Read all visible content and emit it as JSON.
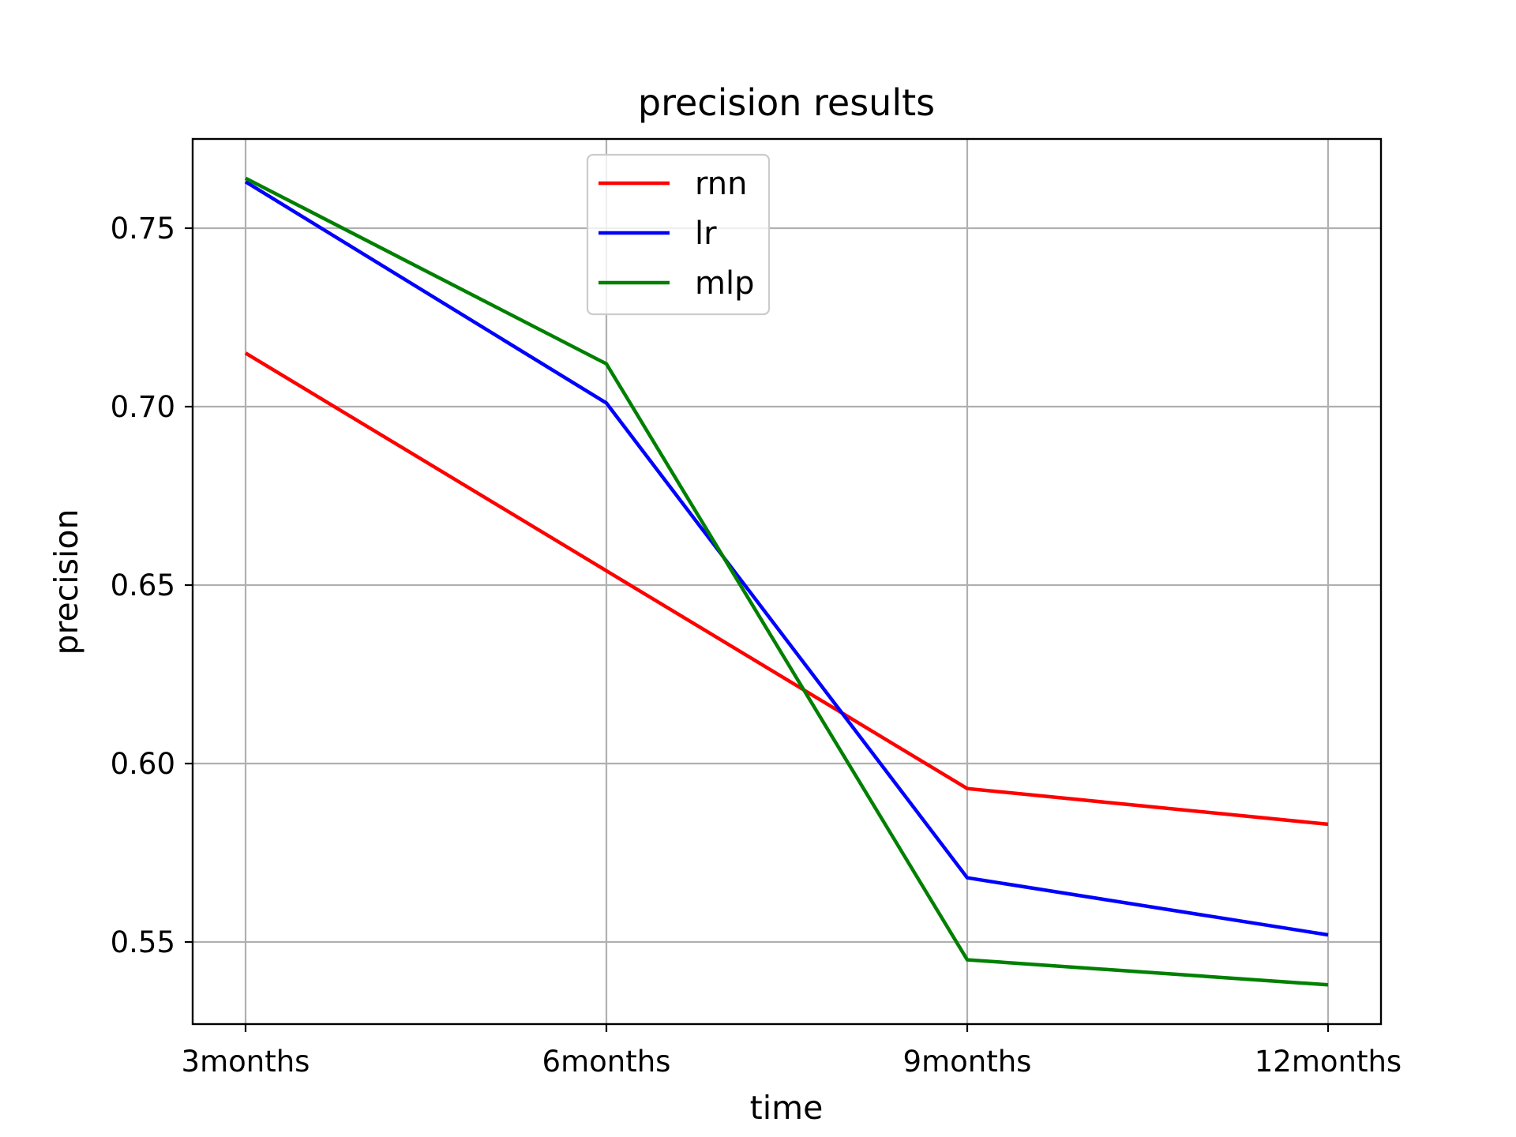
{
  "chart_data": {
    "type": "line",
    "title": "precision results",
    "xlabel": "time",
    "ylabel": "precision",
    "categories": [
      "3months",
      "6months",
      "9months",
      "12months"
    ],
    "ylim": [
      0.527,
      0.775
    ],
    "yticks": [
      0.55,
      0.6,
      0.65,
      0.7,
      0.75
    ],
    "ytick_labels": [
      "0.55",
      "0.60",
      "0.65",
      "0.70",
      "0.75"
    ],
    "grid": true,
    "legend_position": "upper-center",
    "series": [
      {
        "name": "rnn",
        "color": "#ff0000",
        "values": [
          0.715,
          0.654,
          0.593,
          0.583
        ]
      },
      {
        "name": "lr",
        "color": "#0000ff",
        "values": [
          0.763,
          0.701,
          0.568,
          0.552
        ]
      },
      {
        "name": "mlp",
        "color": "#008000",
        "values": [
          0.764,
          0.712,
          0.545,
          0.538
        ]
      }
    ]
  }
}
